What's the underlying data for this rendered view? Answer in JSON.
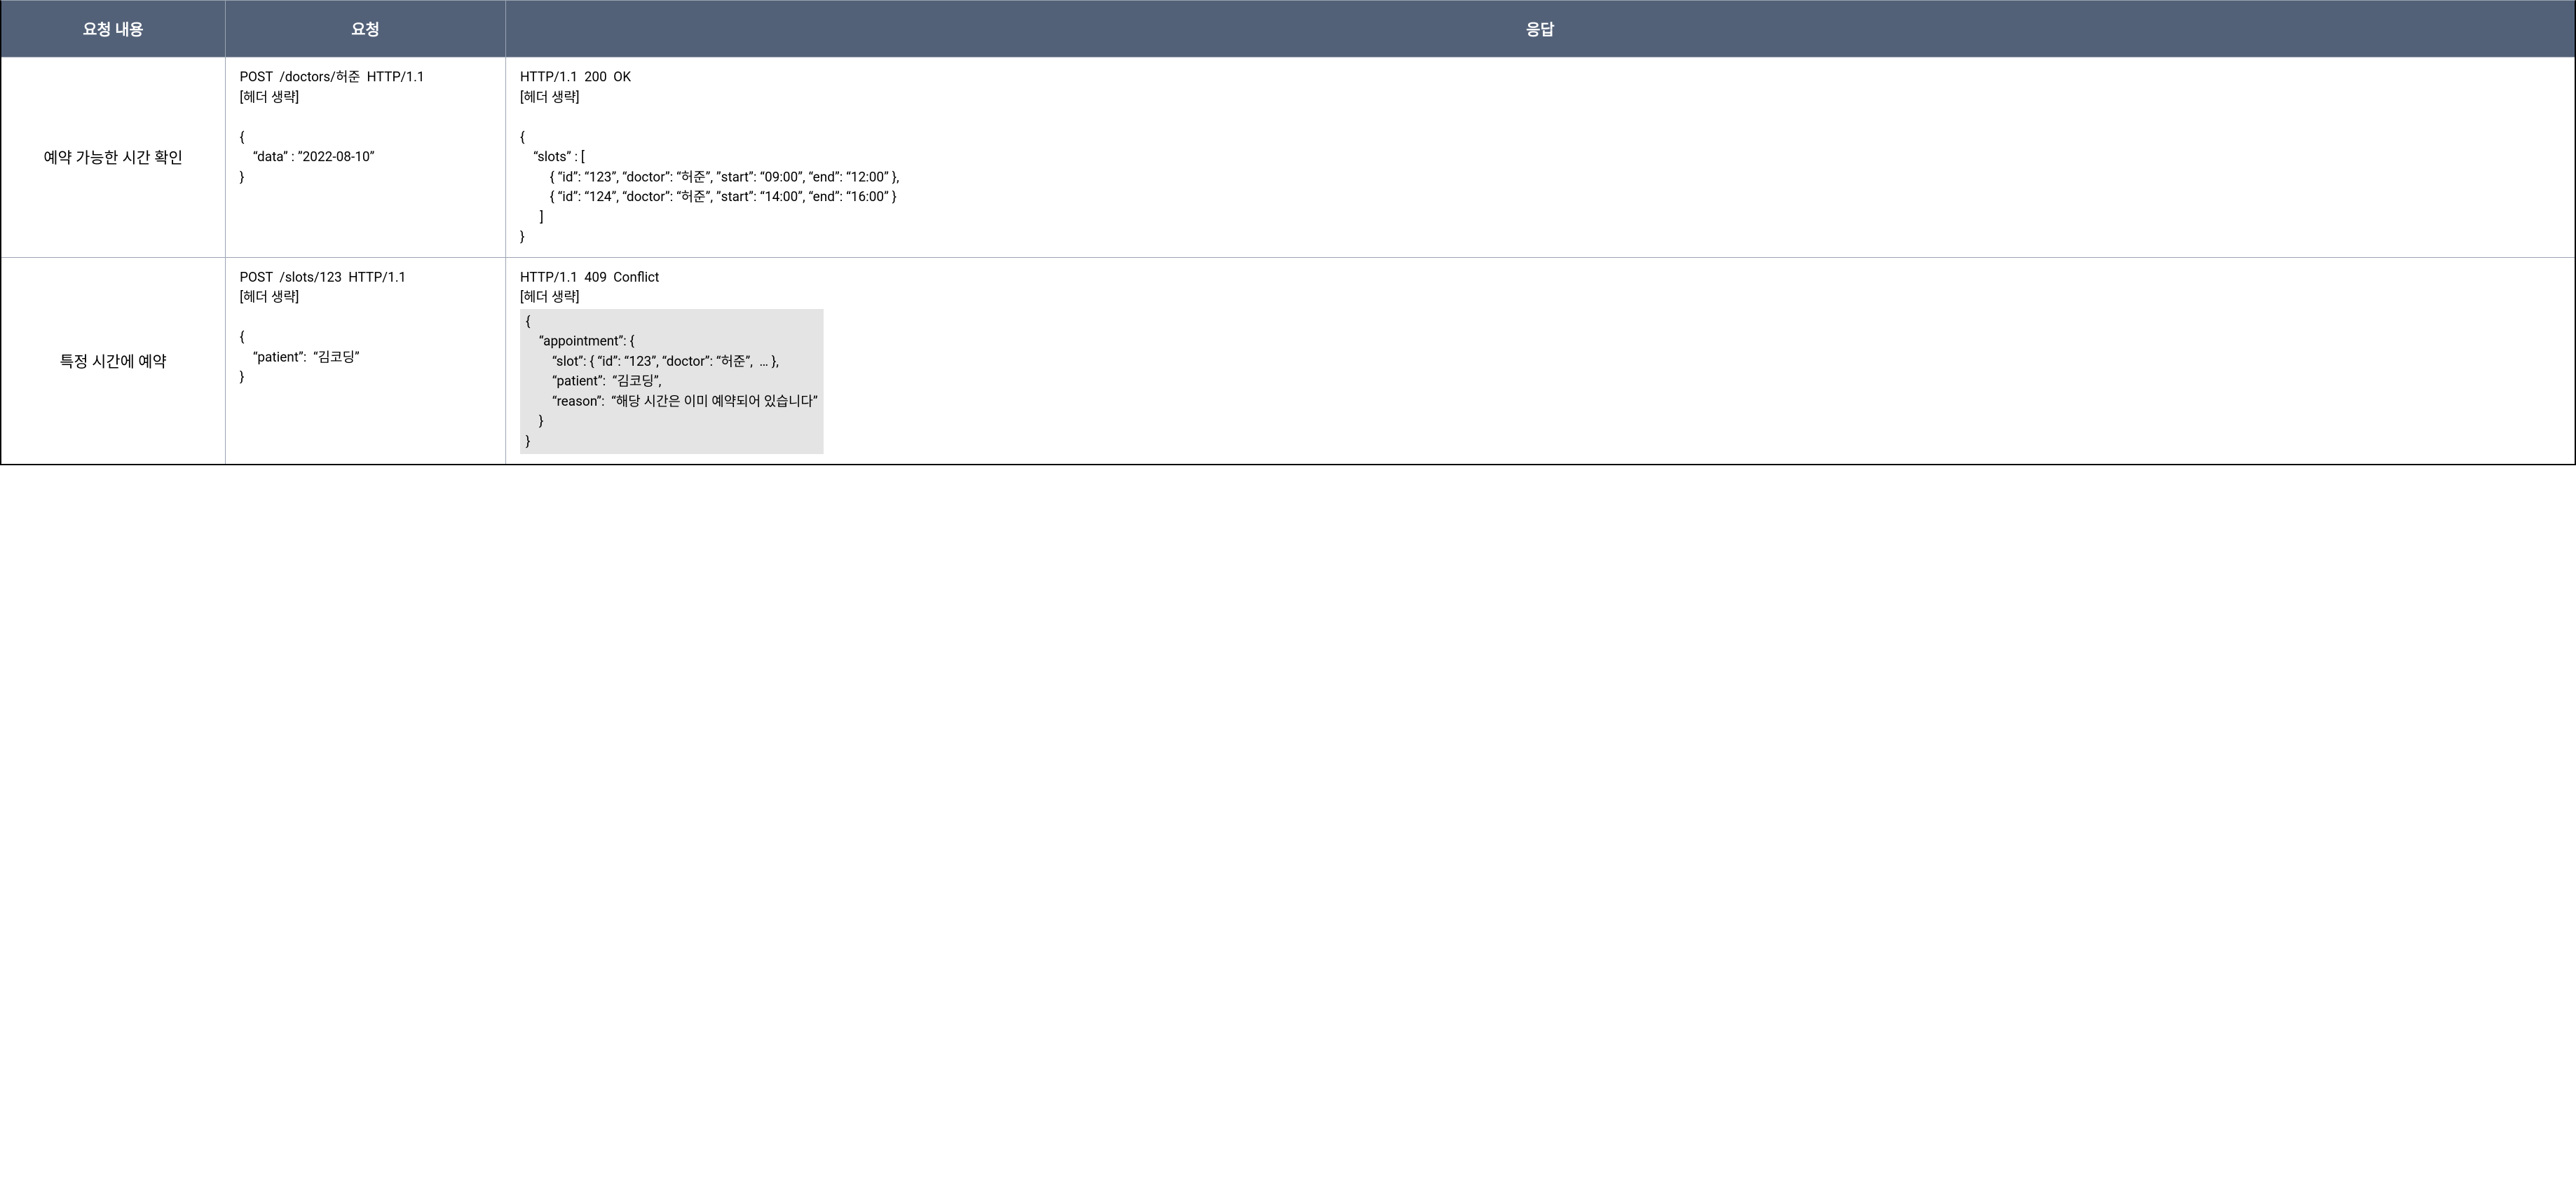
{
  "table": {
    "header": {
      "col1": "요청 내용",
      "col2": "요청",
      "col3": "응답"
    },
    "rows": [
      {
        "label": "예약 가능한 시간 확인",
        "request": "POST  /doctors/허준  HTTP/1.1\n[헤더 생략]\n\n{\n    “data” : ”2022-08-10”\n}",
        "response": "HTTP/1.1  200  OK\n[헤더 생략]\n\n{\n    “slots” : [\n         { “id”: “123”, “doctor”: “허준”, ”start”: “09:00”, “end”: “12:00” },\n         { “id”: “124”, “doctor”: “허준”, ”start”: “14:00”, “end”: “16:00” }\n      ]\n}",
        "has_highlight": false
      },
      {
        "label": "특정 시간에 예약",
        "request": "POST  /slots/123  HTTP/1.1\n[헤더 생략]\n\n{\n    “patient”:  “김코딩”\n}",
        "response_prefix": "HTTP/1.1  409  Conflict\n[헤더 생략]\n",
        "response_highlight": "{\n    “appointment”: {\n        “slot”: { “id”: “123”, “doctor”: “허준”,  … },\n        “patient”:  “김코딩”,\n        “reason”:  “해당 시간은 이미 예약되어 있습니다”\n    }\n}",
        "has_highlight": true
      }
    ],
    "colors": {
      "header_bg": "#536178",
      "header_text": "#ffffff",
      "border": "#9aa4b2",
      "outer_border": "#000000",
      "highlight_bg": "#e4e4e4",
      "text": "#000000"
    }
  }
}
